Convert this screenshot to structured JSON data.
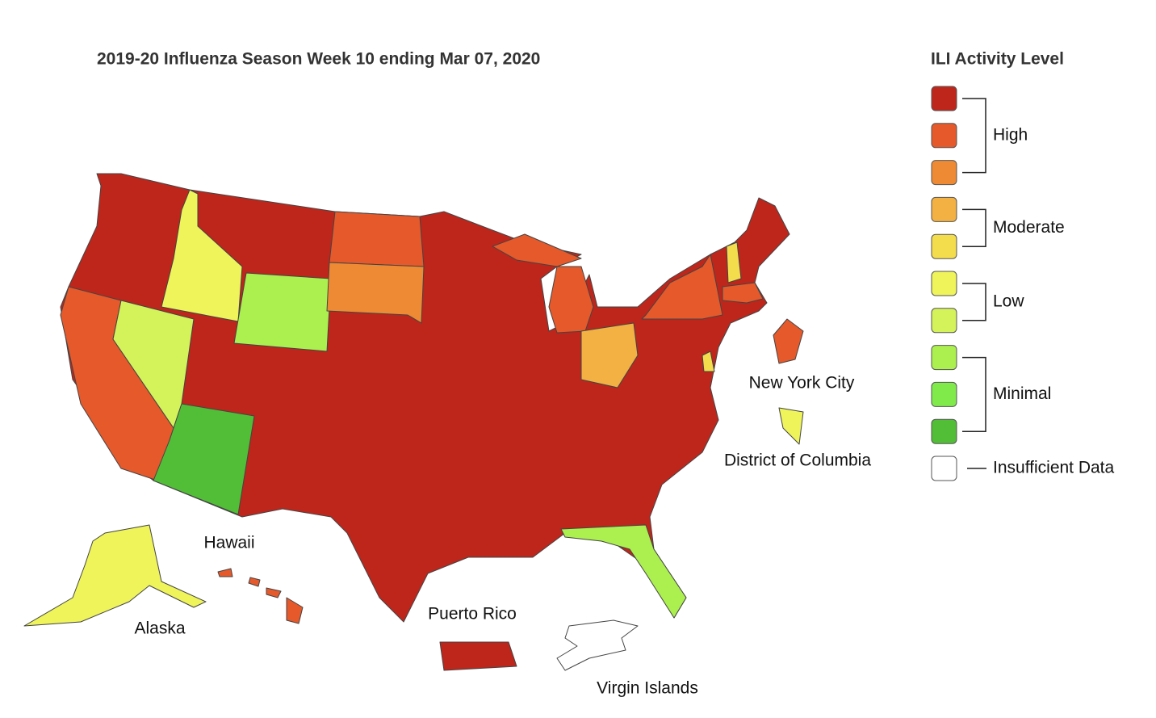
{
  "title": "2019-20 Influenza Season Week 10 ending Mar 07, 2020",
  "legend": {
    "title": "ILI Activity Level",
    "groups": [
      {
        "label": "High",
        "colors": [
          "#be261b",
          "#e5592b",
          "#ee8a33"
        ]
      },
      {
        "label": "Moderate",
        "colors": [
          "#f2b142",
          "#f4dd4d"
        ]
      },
      {
        "label": "Low",
        "colors": [
          "#eef45a",
          "#d4f25a"
        ]
      },
      {
        "label": "Minimal",
        "colors": [
          "#abf04f",
          "#80ea4b",
          "#52be37"
        ]
      },
      {
        "label": "Insufficient Data",
        "colors": [
          "#ffffff"
        ]
      }
    ]
  },
  "map": {
    "labels": {
      "new_york_city": "New York City",
      "district_of_columbia": "District of Columbia",
      "hawaii": "Hawaii",
      "alaska": "Alaska",
      "puerto_rico": "Puerto Rico",
      "virgin_islands": "Virgin Islands"
    }
  }
}
